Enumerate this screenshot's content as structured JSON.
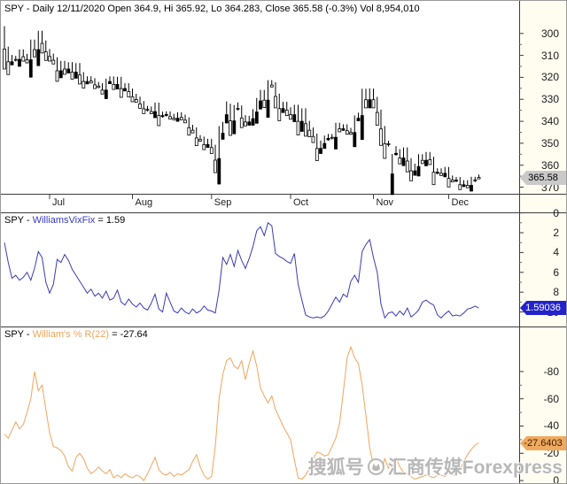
{
  "header": {
    "title": "SPY - Daily 12/11/2020 Open 364.9, Hi 365.92, Lo 364.283, Close 365.58 (-0.3%) Vol 8,954,010"
  },
  "panel_titles": {
    "vixfix": {
      "prefix": "SPY - ",
      "name": "WilliamsVixFix",
      "suffix": " = 1.59"
    },
    "percent_r": {
      "prefix": "SPY - ",
      "name": "William's % R(22)",
      "suffix": " = -27.64"
    }
  },
  "watermark": {
    "site": "搜狐号",
    "account": "汇商传媒Forexpress",
    "logo": "sohu-fox-logo"
  },
  "colors": {
    "vixfix_line": "#3a3ab8",
    "percent_r_line": "#f2a45c",
    "candle_outline": "#000000",
    "up_candle_fill": "#ffffff",
    "down_candle_fill": "#000000",
    "price_badge_bg": "#c9c9c9",
    "vix_badge_bg": "#2323cc",
    "pr_badge_bg": "#f0aa5f",
    "axis_strip_bg": "#fffdf0"
  },
  "chart_data": [
    {
      "id": "price",
      "type": "candlestick",
      "symbol": "SPY",
      "timeframe": "Daily",
      "last_date": "12/11/2020",
      "open": 364.9,
      "high": 365.92,
      "low": 364.283,
      "close": 365.58,
      "change_pct": "-0.3%",
      "volume": "8,954,010",
      "ylim": [
        288,
        376
      ],
      "yticks": [
        370,
        360,
        350,
        340,
        330,
        320,
        310,
        300
      ],
      "last_value_label": "365.58",
      "x_months": {
        "labels": [
          "Jul",
          "Aug",
          "Sep",
          "Oct",
          "Nov",
          "Dec"
        ],
        "first_index": [
          12,
          34,
          55,
          76,
          98,
          118
        ]
      },
      "ohlc": [
        [
          298.0,
          308.3,
          296.7,
          307.1
        ],
        [
          307.1,
          313.9,
          306.0,
          312.9
        ],
        [
          312.9,
          313.9,
          309.8,
          311.5
        ],
        [
          311.5,
          312.8,
          310.2,
          311.8
        ],
        [
          311.8,
          312.8,
          307.3,
          308.6
        ],
        [
          308.6,
          311.6,
          307.3,
          310.6
        ],
        [
          310.6,
          313.0,
          309.3,
          312.0
        ],
        [
          312.0,
          313.0,
          302.8,
          304.1
        ],
        [
          304.1,
          308.4,
          302.8,
          307.4
        ],
        [
          307.4,
          308.4,
          298.8,
          300.1
        ],
        [
          300.1,
          305.5,
          298.8,
          304.5
        ],
        [
          304.5,
          309.4,
          303.2,
          308.4
        ],
        [
          308.4,
          311.5,
          307.1,
          310.5
        ],
        [
          310.5,
          313.2,
          309.2,
          312.2
        ],
        [
          312.2,
          318.0,
          310.9,
          317.0
        ],
        [
          317.0,
          318.0,
          312.5,
          313.8
        ],
        [
          313.8,
          317.2,
          312.5,
          316.2
        ],
        [
          316.2,
          317.2,
          313.1,
          314.4
        ],
        [
          314.4,
          318.6,
          313.1,
          317.6
        ],
        [
          317.6,
          318.6,
          313.5,
          314.8
        ],
        [
          314.8,
          319.9,
          313.5,
          318.9
        ],
        [
          318.9,
          322.9,
          317.6,
          321.9
        ],
        [
          321.9,
          322.9,
          319.5,
          320.8
        ],
        [
          320.8,
          322.7,
          319.5,
          321.7
        ],
        [
          321.7,
          324.4,
          320.4,
          323.4
        ],
        [
          323.4,
          325.0,
          322.1,
          324.0
        ],
        [
          324.0,
          326.8,
          322.7,
          325.8
        ],
        [
          325.8,
          326.8,
          320.6,
          321.9
        ],
        [
          321.9,
          322.9,
          319.6,
          320.9
        ],
        [
          320.9,
          324.2,
          319.6,
          323.2
        ],
        [
          323.2,
          324.2,
          319.8,
          321.1
        ],
        [
          321.1,
          326.1,
          319.8,
          325.1
        ],
        [
          325.1,
          326.1,
          322.7,
          324.0
        ],
        [
          324.0,
          327.5,
          322.7,
          326.5
        ],
        [
          326.5,
          329.8,
          325.2,
          328.8
        ],
        [
          328.8,
          331.1,
          327.5,
          330.1
        ],
        [
          330.1,
          333.1,
          328.8,
          332.1
        ],
        [
          332.1,
          335.3,
          330.8,
          334.3
        ],
        [
          334.3,
          335.6,
          333.0,
          334.6
        ],
        [
          334.6,
          336.6,
          333.3,
          335.6
        ],
        [
          335.6,
          336.6,
          331.5,
          332.8
        ],
        [
          332.8,
          338.4,
          331.5,
          337.4
        ],
        [
          337.4,
          338.4,
          335.6,
          336.9
        ],
        [
          336.9,
          337.9,
          335.5,
          336.8
        ],
        [
          336.8,
          338.9,
          335.5,
          337.9
        ],
        [
          337.9,
          339.6,
          336.6,
          338.6
        ],
        [
          338.6,
          339.6,
          335.9,
          337.2
        ],
        [
          337.2,
          339.3,
          335.9,
          338.3
        ],
        [
          338.3,
          340.5,
          337.0,
          339.5
        ],
        [
          339.5,
          343.9,
          338.2,
          342.9
        ],
        [
          342.9,
          345.1,
          341.6,
          344.1
        ],
        [
          344.1,
          348.6,
          342.8,
          347.6
        ],
        [
          347.6,
          349.3,
          346.3,
          348.3
        ],
        [
          348.3,
          351.6,
          347.0,
          350.6
        ],
        [
          350.6,
          351.6,
          348.0,
          349.3
        ],
        [
          349.3,
          353.0,
          348.0,
          352.0
        ],
        [
          352.0,
          358.7,
          350.7,
          357.7
        ],
        [
          357.0,
          357.9,
          342.2,
          345.4
        ],
        [
          345.4,
          346.4,
          340.3,
          342.6
        ],
        [
          337.0,
          338.0,
          331.0,
          333.2
        ],
        [
          333.2,
          341.0,
          332.0,
          339.8
        ],
        [
          339.8,
          340.8,
          332.6,
          333.9
        ],
        [
          333.9,
          335.1,
          331.4,
          334.1
        ],
        [
          334.1,
          339.5,
          332.8,
          338.5
        ],
        [
          338.5,
          341.3,
          337.2,
          340.3
        ],
        [
          340.3,
          341.3,
          337.5,
          338.8
        ],
        [
          338.8,
          339.8,
          334.5,
          335.8
        ],
        [
          335.8,
          336.8,
          329.4,
          330.7
        ],
        [
          330.7,
          331.7,
          325.7,
          327.0
        ],
        [
          327.0,
          331.4,
          325.7,
          330.4
        ],
        [
          330.4,
          331.4,
          321.3,
          322.6
        ],
        [
          322.6,
          324.5,
          321.3,
          323.5
        ],
        [
          323.5,
          329.7,
          322.2,
          328.7
        ],
        [
          328.7,
          335.2,
          327.4,
          334.2
        ],
        [
          334.2,
          335.2,
          331.1,
          332.4
        ],
        [
          332.4,
          335.9,
          331.1,
          334.9
        ],
        [
          334.9,
          338.0,
          333.6,
          337.0
        ],
        [
          337.0,
          338.0,
          332.5,
          333.8
        ],
        [
          333.8,
          341.0,
          332.5,
          340.0
        ],
        [
          340.0,
          341.0,
          334.1,
          335.4
        ],
        [
          335.4,
          342.1,
          334.1,
          341.1
        ],
        [
          341.1,
          345.1,
          339.8,
          344.1
        ],
        [
          344.1,
          347.9,
          342.8,
          346.9
        ],
        [
          346.9,
          353.4,
          345.6,
          352.4
        ],
        [
          352.4,
          353.4,
          348.8,
          350.1
        ],
        [
          350.1,
          351.1,
          346.5,
          347.8
        ],
        [
          347.8,
          348.8,
          345.8,
          347.1
        ],
        [
          347.1,
          348.3,
          345.8,
          347.3
        ],
        [
          347.3,
          348.3,
          340.7,
          342.0
        ],
        [
          342.0,
          344.4,
          340.7,
          343.4
        ],
        [
          343.4,
          344.4,
          341.4,
          342.7
        ],
        [
          342.7,
          345.3,
          341.4,
          344.3
        ],
        [
          344.3,
          346.1,
          343.0,
          345.1
        ],
        [
          345.1,
          346.1,
          337.3,
          338.6
        ],
        [
          338.6,
          339.6,
          336.1,
          337.4
        ],
        [
          337.4,
          338.4,
          325.2,
          326.5
        ],
        [
          326.5,
          331.2,
          325.2,
          330.2
        ],
        [
          330.2,
          331.2,
          325.0,
          326.5
        ],
        [
          326.5,
          331.5,
          325.1,
          330.2
        ],
        [
          330.2,
          337.0,
          328.9,
          336.0
        ],
        [
          336.0,
          344.5,
          334.7,
          343.5
        ],
        [
          343.5,
          351.2,
          342.2,
          350.2
        ],
        [
          350.2,
          351.5,
          348.9,
          350.2
        ],
        [
          364.0,
          364.4,
          354.9,
          354.6
        ],
        [
          354.6,
          355.6,
          351.4,
          354.0
        ],
        [
          354.0,
          357.7,
          352.7,
          356.7
        ],
        [
          356.7,
          357.7,
          351.9,
          353.2
        ],
        [
          353.2,
          359.1,
          351.9,
          358.1
        ],
        [
          358.1,
          363.6,
          356.8,
          362.6
        ],
        [
          362.6,
          363.6,
          359.3,
          360.6
        ],
        [
          360.6,
          361.6,
          355.0,
          356.3
        ],
        [
          356.3,
          358.8,
          355.0,
          357.8
        ],
        [
          357.8,
          358.8,
          354.0,
          355.3
        ],
        [
          355.3,
          358.5,
          354.0,
          357.5
        ],
        [
          357.5,
          364.2,
          356.2,
          363.2
        ],
        [
          363.2,
          364.2,
          361.4,
          362.7
        ],
        [
          362.7,
          364.7,
          361.4,
          363.7
        ],
        [
          363.7,
          364.7,
          360.8,
          362.1
        ],
        [
          362.1,
          367.0,
          360.8,
          366.0
        ],
        [
          366.0,
          367.8,
          364.7,
          366.8
        ],
        [
          366.8,
          367.8,
          365.4,
          366.7
        ],
        [
          366.7,
          369.9,
          365.4,
          368.9
        ],
        [
          368.9,
          369.9,
          366.8,
          368.1
        ],
        [
          368.1,
          370.2,
          366.8,
          369.2
        ],
        [
          369.2,
          370.2,
          365.3,
          366.6
        ],
        [
          366.6,
          367.7,
          365.3,
          366.7
        ],
        [
          364.9,
          365.92,
          364.283,
          365.58
        ]
      ]
    },
    {
      "id": "williams_vixfix",
      "type": "line",
      "name": "WilliamsVixFix",
      "current_value": 1.59,
      "last_value_label": "1.59036",
      "ylim": [
        -0.3,
        11.5
      ],
      "yticks": [
        10,
        8,
        6,
        4,
        2,
        0
      ],
      "values": [
        8.2,
        6.2,
        4.6,
        4.9,
        4.4,
        4.7,
        5.2,
        4.4,
        5.6,
        7.3,
        6.7,
        4.2,
        3.1,
        4.0,
        6.5,
        6.2,
        7.0,
        6.4,
        5.5,
        4.9,
        4.3,
        3.7,
        3.1,
        3.5,
        2.8,
        3.1,
        2.6,
        3.3,
        2.4,
        2.6,
        3.4,
        2.2,
        1.9,
        2.5,
        2.0,
        1.7,
        2.1,
        1.6,
        1.4,
        2.1,
        3.0,
        1.5,
        1.2,
        3.1,
        2.2,
        1.3,
        1.1,
        1.6,
        1.2,
        1.0,
        1.5,
        1.1,
        1.3,
        1.8,
        1.4,
        1.3,
        1.1,
        3.4,
        6.7,
        6.0,
        7.0,
        5.8,
        7.4,
        6.4,
        5.6,
        6.6,
        7.8,
        9.4,
        9.8,
        8.9,
        10.2,
        9.9,
        7.1,
        6.8,
        6.6,
        6.3,
        6.1,
        7.1,
        4.0,
        2.4,
        0.9,
        0.7,
        0.6,
        0.7,
        0.6,
        0.8,
        1.3,
        2.0,
        2.7,
        2.2,
        3.0,
        2.7,
        4.3,
        4.9,
        4.2,
        7.3,
        8.0,
        8.5,
        6.7,
        5.2,
        2.0,
        0.6,
        1.1,
        1.2,
        0.8,
        1.3,
        0.9,
        1.6,
        0.7,
        1.0,
        1.4,
        2.2,
        2.4,
        2.1,
        1.9,
        0.9,
        0.6,
        1.0,
        1.3,
        0.8,
        0.9,
        0.8,
        1.1,
        1.5,
        1.6,
        1.8,
        1.59
      ]
    },
    {
      "id": "williams_percent_r",
      "type": "line",
      "name": "William's % R(22)",
      "current_value": -27.64,
      "last_value_label": "-27.6403",
      "ylim": [
        3,
        -105
      ],
      "yticks": [
        0,
        -20,
        -40,
        -60,
        -80
      ],
      "values": [
        -34,
        -31,
        -37,
        -43,
        -38,
        -41,
        -50,
        -60,
        -80,
        -66,
        -70,
        -52,
        -35,
        -25,
        -24,
        -22,
        -18,
        -10,
        -7,
        -17,
        -20,
        -16,
        -9,
        -5,
        -7,
        -10,
        -7,
        -5,
        -8,
        -2,
        -4,
        -2,
        -5,
        -3,
        -2,
        -4,
        -3,
        0,
        -5,
        -11,
        -17,
        -8,
        -5,
        -4,
        -6,
        -3,
        -5,
        -4,
        -6,
        -8,
        -14,
        -19,
        -10,
        -4,
        -1,
        -3,
        -25,
        -60,
        -78,
        -88,
        -90,
        -84,
        -82,
        -88,
        -74,
        -86,
        -95,
        -84,
        -68,
        -62,
        -57,
        -62,
        -52,
        -46,
        -40,
        -35,
        -30,
        -15,
        -2,
        -1,
        -4,
        -9,
        -16,
        -21,
        -20,
        -18,
        -19,
        -25,
        -31,
        -42,
        -65,
        -90,
        -98,
        -90,
        -86,
        -70,
        -48,
        -24,
        -11,
        -14,
        -7,
        -16,
        -9,
        -14,
        -17,
        -10,
        -6,
        -5,
        -3,
        -1,
        -2,
        -3,
        -4,
        -3,
        -2,
        -4,
        -4,
        -3,
        -5,
        -4,
        -4,
        -8,
        -14,
        -19,
        -23,
        -26,
        -27.64
      ]
    }
  ]
}
